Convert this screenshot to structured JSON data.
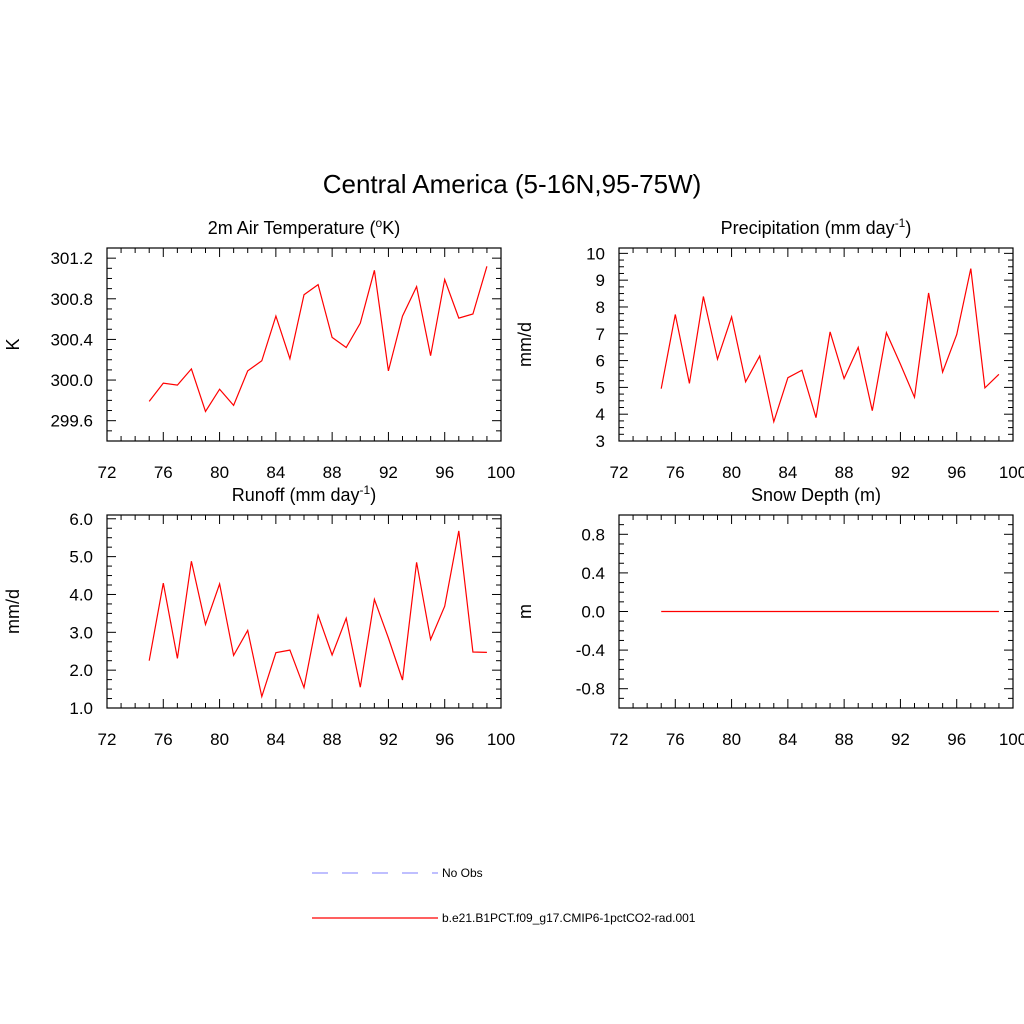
{
  "figure": {
    "title": "Central America (5-16N,95-75W)"
  },
  "legend": {
    "items": [
      {
        "label": "No Obs",
        "color": "#9999ff",
        "dash": true
      },
      {
        "label": "b.e21.B1PCT.f09_g17.CMIP6-1pctCO2-rad.001",
        "color": "#ff0000",
        "dash": false
      }
    ]
  },
  "chart_data": [
    {
      "type": "line",
      "title_main": "2m Air Temperature (",
      "title_sup": "o",
      "title_tail": "K)",
      "ylabel": "K",
      "xlim": [
        72,
        100
      ],
      "ylim": [
        299.4,
        301.3
      ],
      "xticks": [
        "72",
        "76",
        "80",
        "84",
        "88",
        "92",
        "96",
        "100"
      ],
      "yticks": [
        "299.6",
        "300.0",
        "300.4",
        "300.8",
        "301.2"
      ],
      "x": [
        75,
        76,
        77,
        78,
        79,
        80,
        81,
        82,
        83,
        84,
        85,
        86,
        87,
        88,
        89,
        90,
        91,
        92,
        93,
        94,
        95,
        96,
        97,
        98,
        99
      ],
      "series": [
        {
          "color": "#ff0000",
          "values": [
            299.79,
            299.97,
            299.95,
            300.11,
            299.69,
            299.91,
            299.75,
            300.09,
            300.19,
            300.63,
            300.21,
            300.84,
            300.94,
            300.42,
            300.32,
            300.56,
            301.08,
            300.09,
            300.63,
            300.92,
            300.24,
            300.99,
            300.61,
            300.65,
            301.12
          ]
        }
      ]
    },
    {
      "type": "line",
      "title_main": "Precipitation (mm day",
      "title_sup": "-1",
      "title_tail": ")",
      "ylabel": "mm/d",
      "xlim": [
        72,
        100
      ],
      "ylim": [
        3,
        10.2
      ],
      "xticks": [
        "72",
        "76",
        "80",
        "84",
        "88",
        "92",
        "96",
        "100"
      ],
      "yticks": [
        "3",
        "4",
        "5",
        "6",
        "7",
        "8",
        "9",
        "10"
      ],
      "x": [
        75,
        76,
        77,
        78,
        79,
        80,
        81,
        82,
        83,
        84,
        85,
        86,
        87,
        88,
        89,
        90,
        91,
        92,
        93,
        94,
        95,
        96,
        97,
        98,
        99
      ],
      "series": [
        {
          "color": "#ff0000",
          "values": [
            4.95,
            7.72,
            5.15,
            8.39,
            6.05,
            7.63,
            5.21,
            6.17,
            3.72,
            5.36,
            5.64,
            3.87,
            7.07,
            5.33,
            6.49,
            4.13,
            7.04,
            5.87,
            4.63,
            8.52,
            5.57,
            6.97,
            9.43,
            4.98,
            5.49
          ]
        }
      ]
    },
    {
      "type": "line",
      "title_main": "Runoff (mm day",
      "title_sup": "-1",
      "title_tail": ")",
      "ylabel": "mm/d",
      "xlim": [
        72,
        100
      ],
      "ylim": [
        1,
        6.1
      ],
      "xticks": [
        "72",
        "76",
        "80",
        "84",
        "88",
        "92",
        "96",
        "100"
      ],
      "yticks": [
        "1.0",
        "2.0",
        "3.0",
        "4.0",
        "5.0",
        "6.0"
      ],
      "x": [
        75,
        76,
        77,
        78,
        79,
        80,
        81,
        82,
        83,
        84,
        85,
        86,
        87,
        88,
        89,
        90,
        91,
        92,
        93,
        94,
        95,
        96,
        97,
        98,
        99
      ],
      "series": [
        {
          "color": "#ff0000",
          "values": [
            2.25,
            4.3,
            2.31,
            4.88,
            3.21,
            4.28,
            2.39,
            3.05,
            1.3,
            2.46,
            2.53,
            1.54,
            3.45,
            2.4,
            3.37,
            1.55,
            3.87,
            2.85,
            1.74,
            4.85,
            2.81,
            3.69,
            5.68,
            2.48,
            2.47
          ]
        }
      ]
    },
    {
      "type": "line",
      "title_main": "Snow Depth (m)",
      "title_sup": "",
      "title_tail": "",
      "ylabel": "m",
      "xlim": [
        72,
        100
      ],
      "ylim": [
        -1,
        1
      ],
      "xticks": [
        "72",
        "76",
        "80",
        "84",
        "88",
        "92",
        "96",
        "100"
      ],
      "yticks": [
        "-0.8",
        "-0.4",
        "0.0",
        "0.4",
        "0.8"
      ],
      "x": [
        75,
        99
      ],
      "series": [
        {
          "color": "#ff0000",
          "values": [
            0,
            0
          ]
        }
      ]
    }
  ]
}
